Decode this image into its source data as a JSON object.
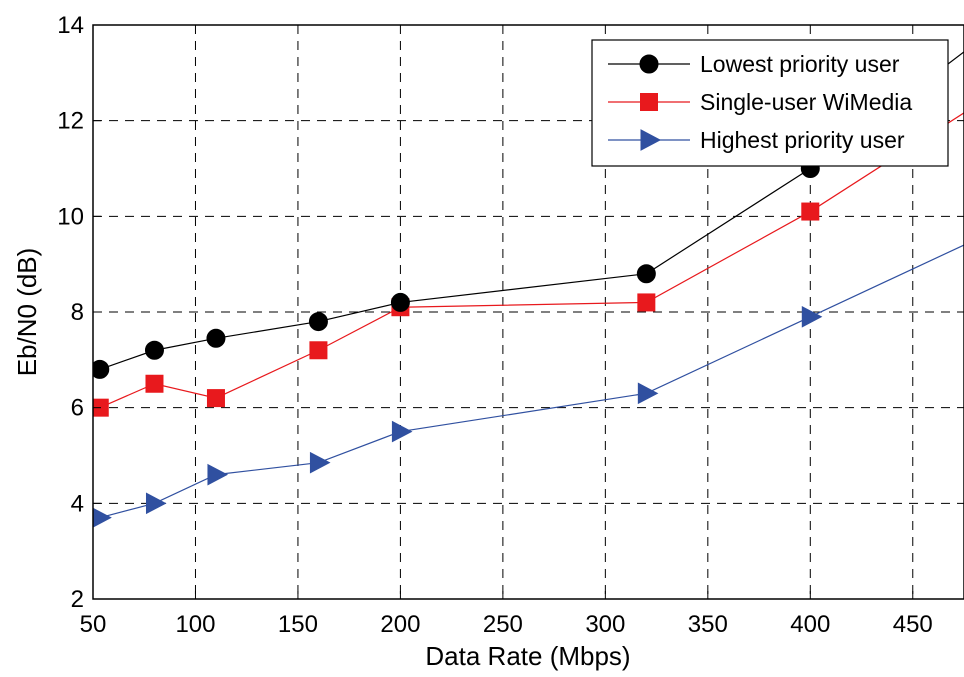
{
  "chart_data": {
    "type": "line",
    "xlabel": "Data Rate (Mbps)",
    "ylabel": "Eb/N0 (dB)",
    "xlim": [
      50,
      475
    ],
    "ylim": [
      2,
      14
    ],
    "xticks": [
      50,
      100,
      150,
      200,
      250,
      300,
      350,
      400,
      450
    ],
    "yticks": [
      2,
      4,
      6,
      8,
      10,
      12,
      14
    ],
    "grid": true,
    "legend_position": "top-right",
    "series": [
      {
        "name": "Lowest priority user",
        "color": "#000000",
        "marker": "circle",
        "x": [
          53.3,
          80,
          110,
          160,
          200,
          320,
          400,
          480
        ],
        "y": [
          6.8,
          7.2,
          7.45,
          7.8,
          8.2,
          8.8,
          11.0,
          13.6
        ]
      },
      {
        "name": "Single-user WiMedia",
        "color": "#e8191d",
        "marker": "square",
        "x": [
          53.3,
          80,
          110,
          160,
          200,
          320,
          400,
          480
        ],
        "y": [
          6.0,
          6.5,
          6.2,
          7.2,
          8.1,
          8.2,
          10.1,
          12.3
        ]
      },
      {
        "name": "Highest priority user",
        "color": "#3050a0",
        "marker": "triangle-right",
        "x": [
          53.3,
          80,
          110,
          160,
          200,
          320,
          400,
          480
        ],
        "y": [
          3.7,
          4.0,
          4.6,
          4.85,
          5.5,
          6.3,
          7.9,
          9.5
        ]
      }
    ]
  }
}
